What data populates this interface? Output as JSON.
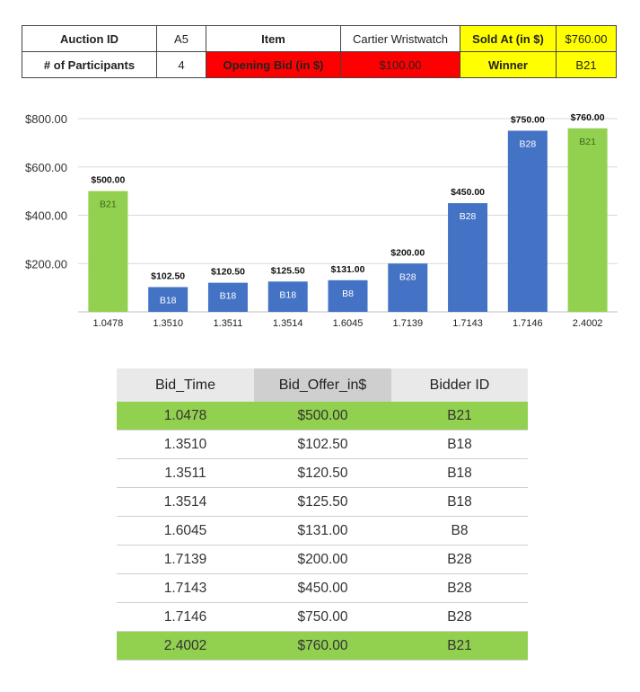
{
  "summary": {
    "auction_id_label": "Auction ID",
    "auction_id": "A5",
    "item_label": "Item",
    "item": "Cartier Wristwatch",
    "sold_at_label": "Sold At (in $)",
    "sold_at": "$760.00",
    "participants_label": "# of Participants",
    "participants": "4",
    "opening_bid_label": "Opening Bid (in $)",
    "opening_bid": "$100.00",
    "winner_label": "Winner",
    "winner": "B21"
  },
  "colors": {
    "green": "#92d050",
    "blue": "#4472c4",
    "red": "#ff0000",
    "yellow": "#ffff00"
  },
  "chart_data": {
    "type": "bar",
    "categories": [
      "1.0478",
      "1.3510",
      "1.3511",
      "1.3514",
      "1.6045",
      "1.7139",
      "1.7143",
      "1.7146",
      "2.4002"
    ],
    "values": [
      500,
      102.5,
      120.5,
      125.5,
      131,
      200,
      450,
      750,
      760
    ],
    "value_labels": [
      "$500.00",
      "$102.50",
      "$120.50",
      "$125.50",
      "$131.00",
      "$200.00",
      "$450.00",
      "$750.00",
      "$760.00"
    ],
    "bar_labels": [
      "B21",
      "B18",
      "B18",
      "B18",
      "B8",
      "B28",
      "B28",
      "B28",
      "B21"
    ],
    "highlight": [
      true,
      false,
      false,
      false,
      false,
      false,
      false,
      false,
      true
    ],
    "yticks": [
      200,
      400,
      600,
      800
    ],
    "ytick_labels": [
      "$200.00",
      "$400.00",
      "$600.00",
      "$800.00"
    ],
    "ylim": [
      0,
      800
    ],
    "grid": true,
    "legend": false
  },
  "table": {
    "headers": [
      "Bid_Time",
      "Bid_Offer_in$",
      "Bidder ID"
    ],
    "rows": [
      [
        "1.0478",
        "$500.00",
        "B21"
      ],
      [
        "1.3510",
        "$102.50",
        "B18"
      ],
      [
        "1.3511",
        "$120.50",
        "B18"
      ],
      [
        "1.3514",
        "$125.50",
        "B18"
      ],
      [
        "1.6045",
        "$131.00",
        "B8"
      ],
      [
        "1.7139",
        "$200.00",
        "B28"
      ],
      [
        "1.7143",
        "$450.00",
        "B28"
      ],
      [
        "1.7146",
        "$750.00",
        "B28"
      ],
      [
        "2.4002",
        "$760.00",
        "B21"
      ]
    ],
    "highlight_rows": [
      0,
      8
    ]
  }
}
